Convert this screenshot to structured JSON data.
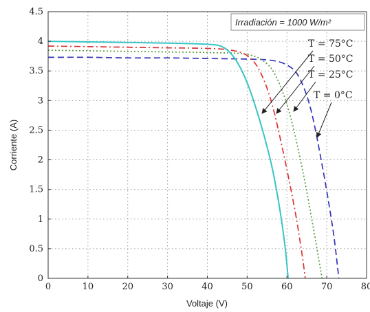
{
  "chart_data": {
    "type": "line",
    "xlabel": "Voltaje (V)",
    "ylabel": "Corriente (A)",
    "xlim": [
      0,
      80
    ],
    "ylim": [
      0,
      4.5
    ],
    "xticks": [
      "0",
      "10",
      "20",
      "30",
      "40",
      "50",
      "60",
      "70",
      "80"
    ],
    "yticks": [
      "0",
      "0.5",
      "1",
      "1.5",
      "2",
      "2.5",
      "3",
      "3.5",
      "4",
      "4.5"
    ],
    "grid": true,
    "annotation": "Irradiación = 1000 W/m²",
    "series": [
      {
        "name": "T = 75°C",
        "color": "#38c4c4",
        "dash": "solid",
        "points": [
          [
            0,
            4.0
          ],
          [
            10,
            3.99
          ],
          [
            20,
            3.98
          ],
          [
            30,
            3.97
          ],
          [
            40,
            3.95
          ],
          [
            44,
            3.9
          ],
          [
            47,
            3.7
          ],
          [
            50,
            3.3
          ],
          [
            53,
            2.7
          ],
          [
            56,
            1.95
          ],
          [
            58,
            1.25
          ],
          [
            59.5,
            0.55
          ],
          [
            60.3,
            0.0
          ]
        ]
      },
      {
        "name": "T = 50°C",
        "color": "#dd3333",
        "dash": "dashdot",
        "points": [
          [
            0,
            3.92
          ],
          [
            10,
            3.91
          ],
          [
            20,
            3.9
          ],
          [
            30,
            3.89
          ],
          [
            40,
            3.88
          ],
          [
            46,
            3.85
          ],
          [
            50,
            3.76
          ],
          [
            53,
            3.52
          ],
          [
            56,
            3.0
          ],
          [
            59,
            2.15
          ],
          [
            62,
            1.15
          ],
          [
            63.8,
            0.4
          ],
          [
            64.6,
            0.0
          ]
        ]
      },
      {
        "name": "T = 25°C",
        "color": "#5a9a35",
        "dash": "dotted",
        "points": [
          [
            0,
            3.85
          ],
          [
            10,
            3.84
          ],
          [
            20,
            3.83
          ],
          [
            30,
            3.82
          ],
          [
            40,
            3.81
          ],
          [
            50,
            3.78
          ],
          [
            55,
            3.62
          ],
          [
            58,
            3.3
          ],
          [
            61,
            2.7
          ],
          [
            64,
            1.8
          ],
          [
            66.5,
            0.9
          ],
          [
            68.3,
            0.2
          ],
          [
            68.8,
            0.0
          ]
        ]
      },
      {
        "name": "T = 0°C",
        "color": "#3333bb",
        "dash": "dashed",
        "points": [
          [
            0,
            3.73
          ],
          [
            10,
            3.73
          ],
          [
            20,
            3.72
          ],
          [
            30,
            3.72
          ],
          [
            40,
            3.71
          ],
          [
            50,
            3.7
          ],
          [
            56,
            3.68
          ],
          [
            60,
            3.6
          ],
          [
            63,
            3.4
          ],
          [
            66,
            2.85
          ],
          [
            69,
            1.85
          ],
          [
            71.5,
            0.85
          ],
          [
            72.7,
            0.2
          ],
          [
            73.0,
            0.0
          ]
        ]
      }
    ]
  }
}
